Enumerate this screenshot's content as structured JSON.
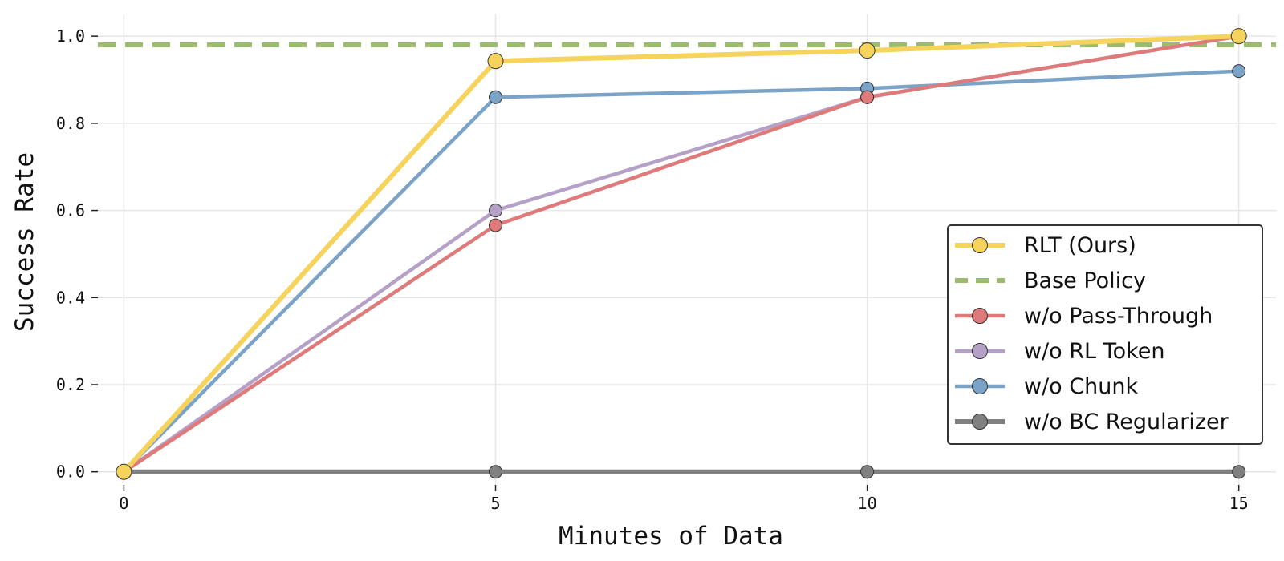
{
  "chart_data": {
    "type": "line",
    "xlabel": "Minutes of Data",
    "ylabel": "Success Rate",
    "x": [
      0,
      5,
      10,
      15
    ],
    "xlim": [
      -0.35,
      15.5
    ],
    "ylim": [
      -0.03,
      1.05
    ],
    "xticks": [
      "0",
      "5",
      "10",
      "15"
    ],
    "yticks": [
      "0.0",
      "0.2",
      "0.4",
      "0.6",
      "0.8",
      "1.0"
    ],
    "grid": true,
    "legend_position": "lower-right",
    "series": [
      {
        "name": "RLT (Ours)",
        "values": [
          0.0,
          0.943,
          0.967,
          1.0
        ],
        "color": "#f5d35d",
        "style": "solid-markers",
        "width": 6
      },
      {
        "name": "Base Policy",
        "values": [
          0.98,
          0.98,
          0.98,
          0.98
        ],
        "color": "#9bbb6e",
        "style": "dashed",
        "width": 6
      },
      {
        "name": "w/o Pass-Through",
        "values": [
          0.0,
          0.566,
          0.86,
          1.0
        ],
        "color": "#de7a7a",
        "style": "solid-markers",
        "width": 4.5
      },
      {
        "name": "w/o RL Token",
        "values": [
          0.0,
          0.6,
          0.86,
          1.0
        ],
        "color": "#b5a1c8",
        "style": "solid-markers",
        "width": 4.5
      },
      {
        "name": "w/o Chunk",
        "values": [
          0.0,
          0.86,
          0.88,
          0.92
        ],
        "color": "#7aa3c7",
        "style": "solid-markers",
        "width": 4.5
      },
      {
        "name": "w/o BC Regularizer",
        "values": [
          0.0,
          0.0,
          0.0,
          0.0
        ],
        "color": "#808080",
        "style": "solid-markers",
        "width": 6
      }
    ]
  }
}
